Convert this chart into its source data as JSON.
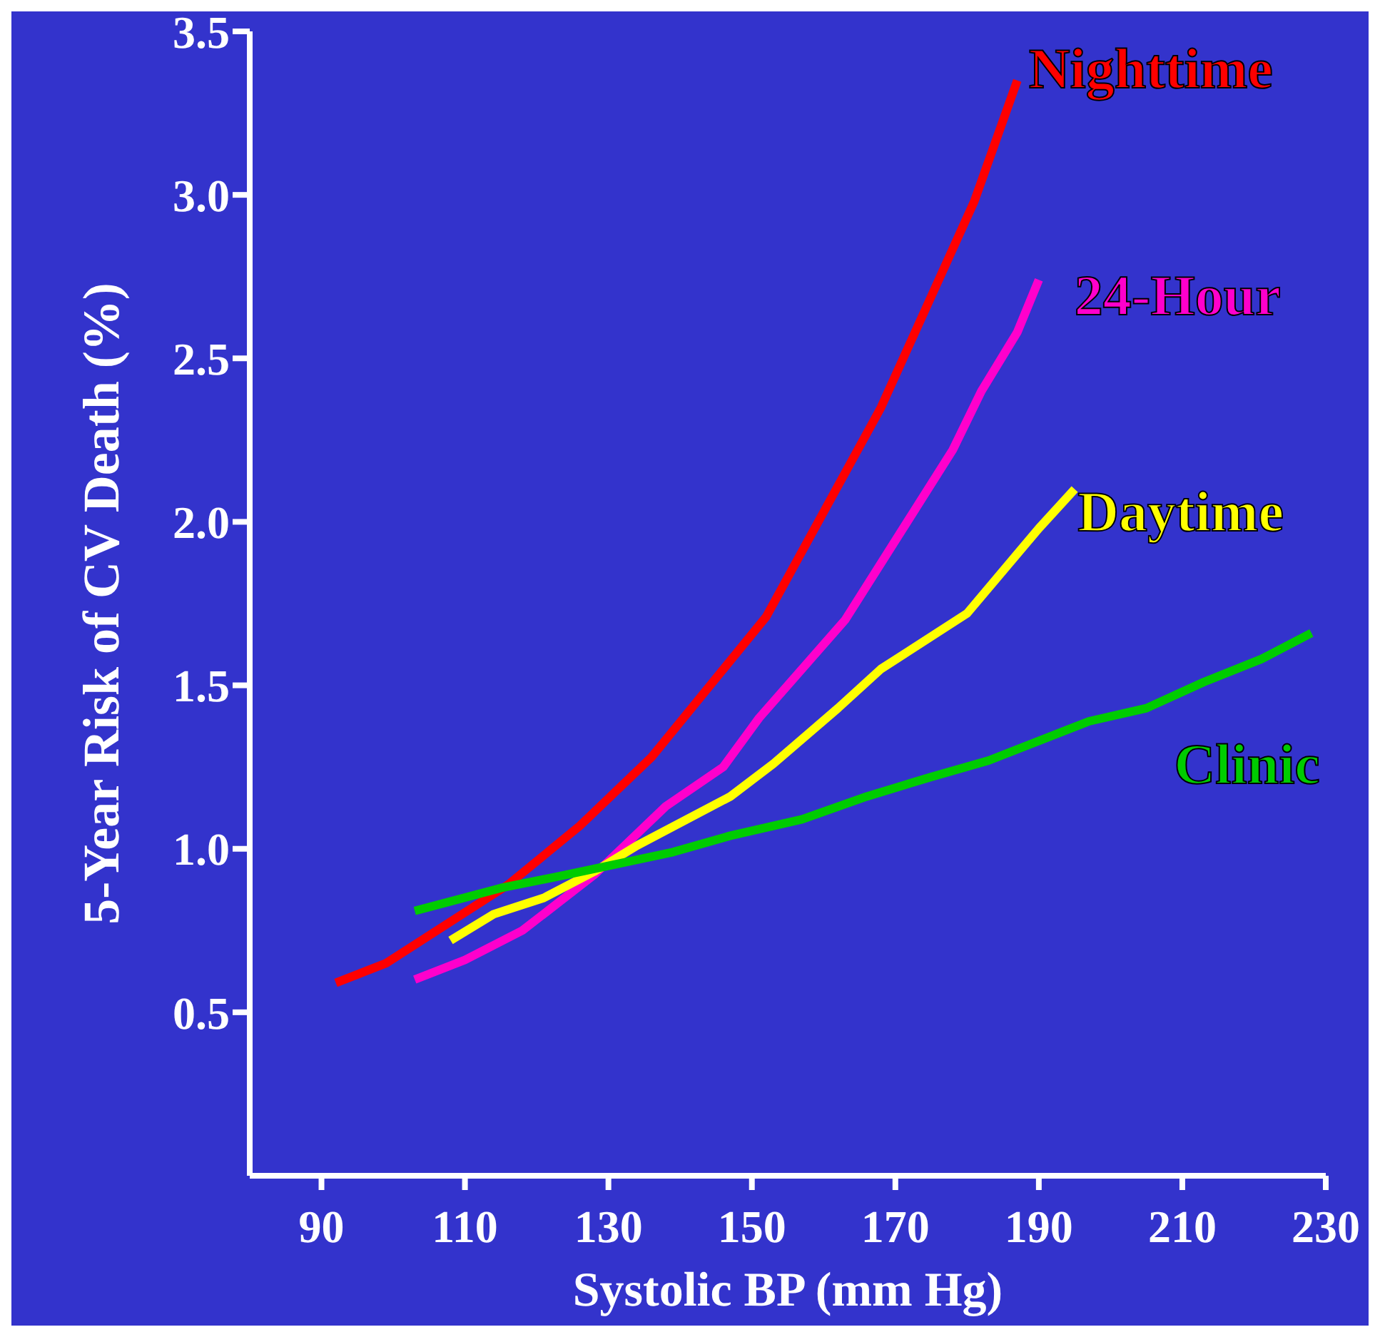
{
  "chart_data": {
    "type": "line",
    "xlabel": "Systolic BP (mm Hg)",
    "ylabel": "5-Year Risk of CV Death (%)",
    "xlim": [
      80,
      230
    ],
    "xticks": [
      90,
      110,
      130,
      150,
      170,
      190,
      210,
      230
    ],
    "ylim": [
      0,
      3.5
    ],
    "yticks": [
      {
        "value": 0.5,
        "label": "0.5"
      },
      {
        "value": 1,
        "label": "1.0"
      },
      {
        "value": 1.5,
        "label": "1.5"
      },
      {
        "value": 2,
        "label": "2.0"
      },
      {
        "value": 2.5,
        "label": "2.5"
      },
      {
        "value": 3,
        "label": "3.0"
      },
      {
        "value": 3.5,
        "label": "3.5"
      }
    ],
    "grid": false,
    "legend": false,
    "marker": "none",
    "line_style": "solid",
    "series": [
      {
        "name": "Nighttime",
        "color": "#ff0000",
        "x": [
          92,
          99,
          116,
          126,
          136,
          152,
          168,
          181,
          187
        ],
        "values": [
          0.59,
          0.65,
          0.89,
          1.07,
          1.28,
          1.71,
          2.35,
          2.98,
          3.35
        ]
      },
      {
        "name": "24-Hour",
        "color": "#ff00cc",
        "x": [
          103,
          110,
          118,
          128,
          138,
          146,
          151,
          163,
          178,
          182,
          187,
          190
        ],
        "values": [
          0.6,
          0.66,
          0.75,
          0.92,
          1.13,
          1.25,
          1.4,
          1.7,
          2.22,
          2.4,
          2.58,
          2.74
        ]
      },
      {
        "name": "Daytime",
        "color": "#ffff00",
        "x": [
          108,
          114,
          121,
          128,
          134,
          147,
          153,
          162,
          168,
          180,
          190,
          195
        ],
        "values": [
          0.72,
          0.8,
          0.85,
          0.93,
          1.01,
          1.16,
          1.26,
          1.43,
          1.55,
          1.72,
          1.98,
          2.1
        ]
      },
      {
        "name": "Clinic",
        "color": "#00cc00",
        "x": [
          103,
          115,
          124,
          139,
          147,
          157,
          166,
          175,
          183,
          197,
          205,
          213,
          221,
          228
        ],
        "values": [
          0.81,
          0.88,
          0.92,
          0.99,
          1.04,
          1.09,
          1.16,
          1.22,
          1.27,
          1.39,
          1.43,
          1.51,
          1.58,
          1.66
        ]
      }
    ]
  }
}
